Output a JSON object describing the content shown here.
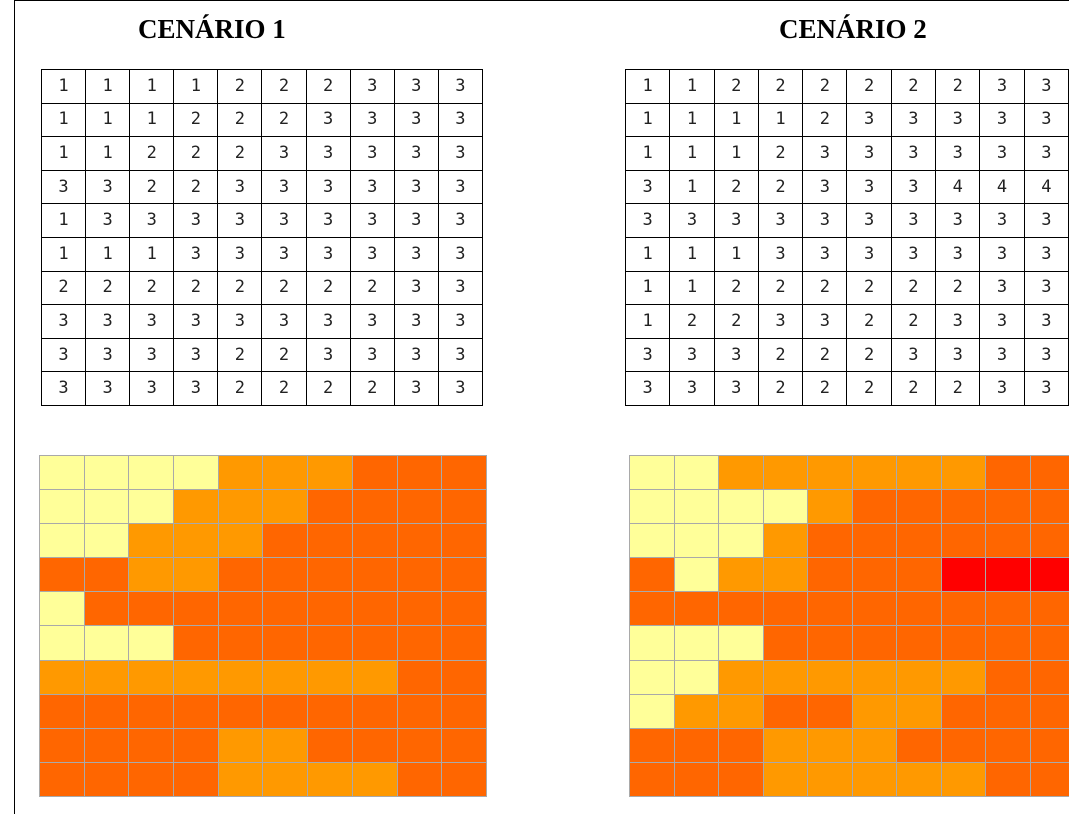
{
  "scenario_1": {
    "title": "CENÁRIO 1",
    "grid": [
      [
        1,
        1,
        1,
        1,
        2,
        2,
        2,
        3,
        3,
        3
      ],
      [
        1,
        1,
        1,
        2,
        2,
        2,
        3,
        3,
        3,
        3
      ],
      [
        1,
        1,
        2,
        2,
        2,
        3,
        3,
        3,
        3,
        3
      ],
      [
        3,
        3,
        2,
        2,
        3,
        3,
        3,
        3,
        3,
        3
      ],
      [
        1,
        3,
        3,
        3,
        3,
        3,
        3,
        3,
        3,
        3
      ],
      [
        1,
        1,
        1,
        3,
        3,
        3,
        3,
        3,
        3,
        3
      ],
      [
        2,
        2,
        2,
        2,
        2,
        2,
        2,
        2,
        3,
        3
      ],
      [
        3,
        3,
        3,
        3,
        3,
        3,
        3,
        3,
        3,
        3
      ],
      [
        3,
        3,
        3,
        3,
        2,
        2,
        3,
        3,
        3,
        3
      ],
      [
        3,
        3,
        3,
        3,
        2,
        2,
        2,
        2,
        3,
        3
      ]
    ]
  },
  "scenario_2": {
    "title": "CENÁRIO 2",
    "grid": [
      [
        1,
        1,
        2,
        2,
        2,
        2,
        2,
        2,
        3,
        3
      ],
      [
        1,
        1,
        1,
        1,
        2,
        3,
        3,
        3,
        3,
        3
      ],
      [
        1,
        1,
        1,
        2,
        3,
        3,
        3,
        3,
        3,
        3
      ],
      [
        3,
        1,
        2,
        2,
        3,
        3,
        3,
        4,
        4,
        4
      ],
      [
        3,
        3,
        3,
        3,
        3,
        3,
        3,
        3,
        3,
        3
      ],
      [
        1,
        1,
        1,
        3,
        3,
        3,
        3,
        3,
        3,
        3
      ],
      [
        1,
        1,
        2,
        2,
        2,
        2,
        2,
        2,
        3,
        3
      ],
      [
        1,
        2,
        2,
        3,
        3,
        2,
        2,
        3,
        3,
        3
      ],
      [
        3,
        3,
        3,
        2,
        2,
        2,
        3,
        3,
        3,
        3
      ],
      [
        3,
        3,
        3,
        2,
        2,
        2,
        2,
        2,
        3,
        3
      ]
    ]
  },
  "colors": {
    "1": "#ffff99",
    "2": "#ff9900",
    "3": "#ff6600",
    "4": "#ff0000"
  }
}
